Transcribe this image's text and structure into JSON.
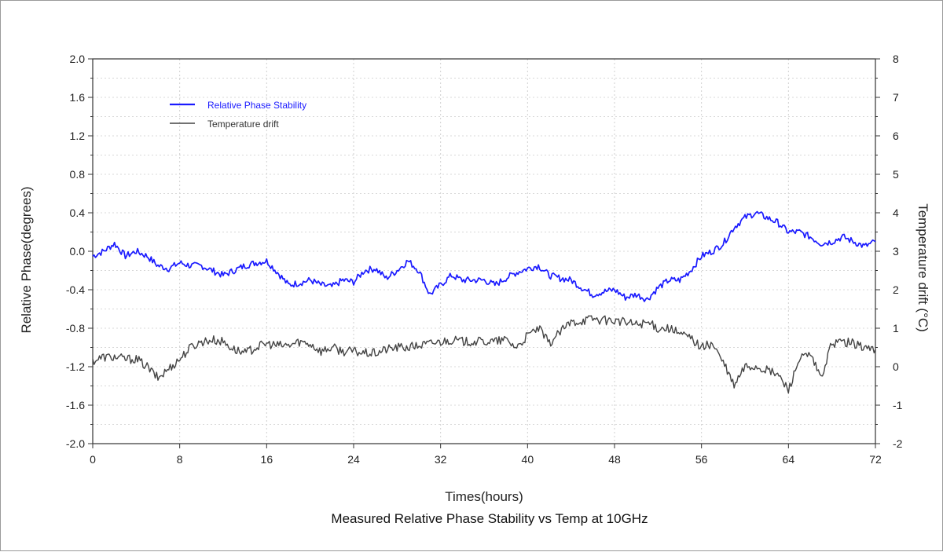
{
  "chart_data": {
    "type": "line",
    "title": "Measured Relative Phase Stability vs Temp at 10GHz",
    "xlabel": "Times(hours)",
    "ylabel": "Relative Phase(degrees)",
    "y2label": "Temperature drift  (°C)",
    "xlim": [
      0,
      72
    ],
    "ylim": [
      -2.0,
      2.0
    ],
    "y2lim": [
      -2,
      8
    ],
    "x_ticks": [
      "0",
      "8",
      "16",
      "24",
      "32",
      "40",
      "48",
      "56",
      "64",
      "72"
    ],
    "y_ticks": [
      "2.0",
      "1.6",
      "1.2",
      "0.8",
      "0.4",
      "0.0",
      "-0.4",
      "-0.8",
      "-1.2",
      "-1.6",
      "-2.0"
    ],
    "y2_ticks": [
      "8",
      "7",
      "6",
      "5",
      "4",
      "3",
      "2",
      "1",
      "0",
      "-1",
      "-2"
    ],
    "grid": true,
    "legend_position": "top-left",
    "series": [
      {
        "name": "Relative Phase Stability",
        "axis": "left",
        "color": "#1a1aff",
        "x": [
          0,
          1,
          2,
          3,
          4,
          5,
          6,
          7,
          8,
          9,
          10,
          11,
          12,
          13,
          14,
          15,
          16,
          17,
          18,
          19,
          20,
          21,
          22,
          23,
          24,
          25,
          26,
          27,
          28,
          29,
          30,
          31,
          32,
          33,
          34,
          35,
          36,
          37,
          38,
          39,
          40,
          41,
          42,
          43,
          44,
          45,
          46,
          47,
          48,
          49,
          50,
          51,
          52,
          53,
          54,
          55,
          56,
          57,
          58,
          59,
          60,
          61,
          62,
          63,
          64,
          65,
          66,
          67,
          68,
          69,
          70,
          71,
          72
        ],
        "values": [
          -0.05,
          0.0,
          0.08,
          -0.05,
          0.0,
          -0.05,
          -0.15,
          -0.18,
          -0.12,
          -0.15,
          -0.15,
          -0.2,
          -0.25,
          -0.2,
          -0.15,
          -0.12,
          -0.1,
          -0.22,
          -0.35,
          -0.33,
          -0.3,
          -0.35,
          -0.37,
          -0.3,
          -0.32,
          -0.2,
          -0.18,
          -0.28,
          -0.2,
          -0.1,
          -0.2,
          -0.45,
          -0.35,
          -0.25,
          -0.3,
          -0.3,
          -0.3,
          -0.35,
          -0.28,
          -0.22,
          -0.18,
          -0.15,
          -0.25,
          -0.28,
          -0.3,
          -0.38,
          -0.45,
          -0.42,
          -0.4,
          -0.48,
          -0.45,
          -0.5,
          -0.38,
          -0.3,
          -0.3,
          -0.2,
          -0.05,
          0.0,
          0.08,
          0.25,
          0.35,
          0.4,
          0.35,
          0.3,
          0.2,
          0.2,
          0.15,
          0.08,
          0.1,
          0.15,
          0.1,
          0.05,
          0.1
        ]
      },
      {
        "name": "Temperature drift",
        "axis": "right",
        "color": "#444444",
        "x": [
          0,
          1,
          2,
          3,
          4,
          5,
          6,
          7,
          8,
          9,
          10,
          11,
          12,
          13,
          14,
          15,
          16,
          17,
          18,
          19,
          20,
          21,
          22,
          23,
          24,
          25,
          26,
          27,
          28,
          29,
          30,
          31,
          32,
          33,
          34,
          35,
          36,
          37,
          38,
          39,
          40,
          41,
          42,
          43,
          44,
          45,
          46,
          47,
          48,
          49,
          50,
          51,
          52,
          53,
          54,
          55,
          56,
          57,
          58,
          59,
          60,
          61,
          62,
          63,
          64,
          65,
          66,
          67,
          68,
          69,
          70,
          71,
          72
        ],
        "values": [
          0.15,
          0.25,
          0.25,
          0.2,
          0.2,
          0.0,
          -0.3,
          -0.05,
          0.2,
          0.5,
          0.65,
          0.7,
          0.65,
          0.45,
          0.35,
          0.5,
          0.6,
          0.55,
          0.55,
          0.65,
          0.6,
          0.4,
          0.5,
          0.4,
          0.4,
          0.35,
          0.35,
          0.45,
          0.5,
          0.5,
          0.55,
          0.6,
          0.65,
          0.7,
          0.65,
          0.65,
          0.65,
          0.65,
          0.7,
          0.5,
          0.8,
          1.0,
          0.6,
          0.9,
          1.15,
          1.2,
          1.25,
          1.2,
          1.2,
          1.15,
          1.1,
          1.15,
          1.0,
          1.0,
          0.85,
          0.75,
          0.5,
          0.6,
          0.1,
          -0.5,
          0.0,
          0.0,
          -0.1,
          -0.2,
          -0.6,
          0.2,
          0.3,
          -0.3,
          0.6,
          0.65,
          0.6,
          0.5,
          0.45
        ]
      }
    ]
  }
}
